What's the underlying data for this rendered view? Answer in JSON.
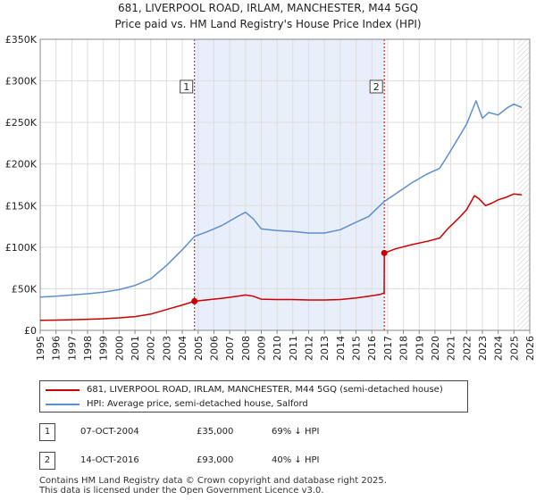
{
  "chart_data": {
    "type": "line",
    "title": "681, LIVERPOOL ROAD, IRLAM, MANCHESTER, M44 5GQ",
    "subtitle": "Price paid vs. HM Land Registry's House Price Index (HPI)",
    "xlabel": "",
    "ylabel": "",
    "xlim": [
      1995,
      2026
    ],
    "ylim": [
      0,
      350000
    ],
    "x_ticks": [
      "1995",
      "1996",
      "1997",
      "1998",
      "1999",
      "2000",
      "2001",
      "2002",
      "2003",
      "2004",
      "2005",
      "2006",
      "2007",
      "2008",
      "2009",
      "2010",
      "2011",
      "2012",
      "2013",
      "2014",
      "2015",
      "2016",
      "2017",
      "2018",
      "2019",
      "2020",
      "2021",
      "2022",
      "2023",
      "2024",
      "2025",
      "2026"
    ],
    "y_ticks": [
      {
        "value": 0,
        "label": "£0"
      },
      {
        "value": 50000,
        "label": "£50K"
      },
      {
        "value": 100000,
        "label": "£100K"
      },
      {
        "value": 150000,
        "label": "£150K"
      },
      {
        "value": 200000,
        "label": "£200K"
      },
      {
        "value": 250000,
        "label": "£250K"
      },
      {
        "value": 300000,
        "label": "£300K"
      },
      {
        "value": 350000,
        "label": "£350K"
      }
    ],
    "grid": true,
    "shaded_region": {
      "from": 2004.77,
      "to": 2016.79,
      "color": "#e8eefa"
    },
    "forecast_hatch_from": 2025.2,
    "series": [
      {
        "name": "681, LIVERPOOL ROAD, IRLAM, MANCHESTER, M44 5GQ (semi-detached house)",
        "color": "#cc0000",
        "points": [
          [
            1995.0,
            12000
          ],
          [
            1996.0,
            12300
          ],
          [
            1997.0,
            12800
          ],
          [
            1998.0,
            13300
          ],
          [
            1999.0,
            14000
          ],
          [
            2000.0,
            15000
          ],
          [
            2001.0,
            16500
          ],
          [
            2002.0,
            19500
          ],
          [
            2003.0,
            25000
          ],
          [
            2004.0,
            30500
          ],
          [
            2004.77,
            35000
          ],
          [
            2005.5,
            36500
          ],
          [
            2006.5,
            38500
          ],
          [
            2007.5,
            41000
          ],
          [
            2008.0,
            42500
          ],
          [
            2008.5,
            41000
          ],
          [
            2009.0,
            37500
          ],
          [
            2010.0,
            37000
          ],
          [
            2011.0,
            37000
          ],
          [
            2012.0,
            36500
          ],
          [
            2013.0,
            36500
          ],
          [
            2014.0,
            37000
          ],
          [
            2015.0,
            39000
          ],
          [
            2015.8,
            41000
          ],
          [
            2016.5,
            43000
          ],
          [
            2016.78,
            45000
          ],
          [
            2016.79,
            93000
          ],
          [
            2017.5,
            98000
          ],
          [
            2018.5,
            103000
          ],
          [
            2019.5,
            107000
          ],
          [
            2020.3,
            111000
          ],
          [
            2020.8,
            122000
          ],
          [
            2021.5,
            135000
          ],
          [
            2022.0,
            145000
          ],
          [
            2022.5,
            162000
          ],
          [
            2022.8,
            158000
          ],
          [
            2023.2,
            150000
          ],
          [
            2023.6,
            153000
          ],
          [
            2024.0,
            157000
          ],
          [
            2024.5,
            160000
          ],
          [
            2025.0,
            164000
          ],
          [
            2025.5,
            163000
          ]
        ]
      },
      {
        "name": "HPI: Average price, semi-detached house, Salford",
        "color": "#5b8fd0",
        "points": [
          [
            1995.0,
            40000
          ],
          [
            1996.0,
            41000
          ],
          [
            1997.0,
            42500
          ],
          [
            1998.0,
            44000
          ],
          [
            1999.0,
            46000
          ],
          [
            2000.0,
            49000
          ],
          [
            2001.0,
            54000
          ],
          [
            2002.0,
            62000
          ],
          [
            2003.0,
            78000
          ],
          [
            2004.0,
            97000
          ],
          [
            2004.77,
            113000
          ],
          [
            2005.5,
            118000
          ],
          [
            2006.5,
            126000
          ],
          [
            2007.5,
            137000
          ],
          [
            2008.0,
            142000
          ],
          [
            2008.5,
            134000
          ],
          [
            2009.0,
            122000
          ],
          [
            2010.0,
            120000
          ],
          [
            2011.0,
            119000
          ],
          [
            2012.0,
            117000
          ],
          [
            2013.0,
            117000
          ],
          [
            2014.0,
            121000
          ],
          [
            2015.0,
            130000
          ],
          [
            2015.8,
            137000
          ],
          [
            2016.79,
            155000
          ],
          [
            2017.5,
            164000
          ],
          [
            2018.5,
            177000
          ],
          [
            2019.5,
            188000
          ],
          [
            2020.3,
            195000
          ],
          [
            2020.8,
            210000
          ],
          [
            2021.5,
            232000
          ],
          [
            2022.0,
            248000
          ],
          [
            2022.6,
            276000
          ],
          [
            2023.0,
            255000
          ],
          [
            2023.4,
            262000
          ],
          [
            2024.0,
            259000
          ],
          [
            2024.6,
            268000
          ],
          [
            2025.0,
            272000
          ],
          [
            2025.5,
            268000
          ]
        ]
      }
    ],
    "annotations": [
      {
        "label": "1",
        "x": 2004.77,
        "y": 35000
      },
      {
        "label": "2",
        "x": 2016.79,
        "y": 93000
      }
    ]
  },
  "page": {
    "title_line1": "681, LIVERPOOL ROAD, IRLAM, MANCHESTER, M44 5GQ",
    "title_line2": "Price paid vs. HM Land Registry's House Price Index (HPI)"
  },
  "legend": {
    "items": [
      {
        "label": "681, LIVERPOOL ROAD, IRLAM, MANCHESTER, M44 5GQ (semi-detached house)",
        "color": "#cc0000"
      },
      {
        "label": "HPI: Average price, semi-detached house, Salford",
        "color": "#5b8fd0"
      }
    ]
  },
  "transactions": [
    {
      "num": "1",
      "date": "07-OCT-2004",
      "price": "£35,000",
      "hpi": "69% ↓ HPI"
    },
    {
      "num": "2",
      "date": "14-OCT-2016",
      "price": "£93,000",
      "hpi": "40% ↓ HPI"
    }
  ],
  "footer": {
    "line1": "Contains HM Land Registry data © Crown copyright and database right 2025.",
    "line2": "This data is licensed under the Open Government Licence v3.0."
  }
}
